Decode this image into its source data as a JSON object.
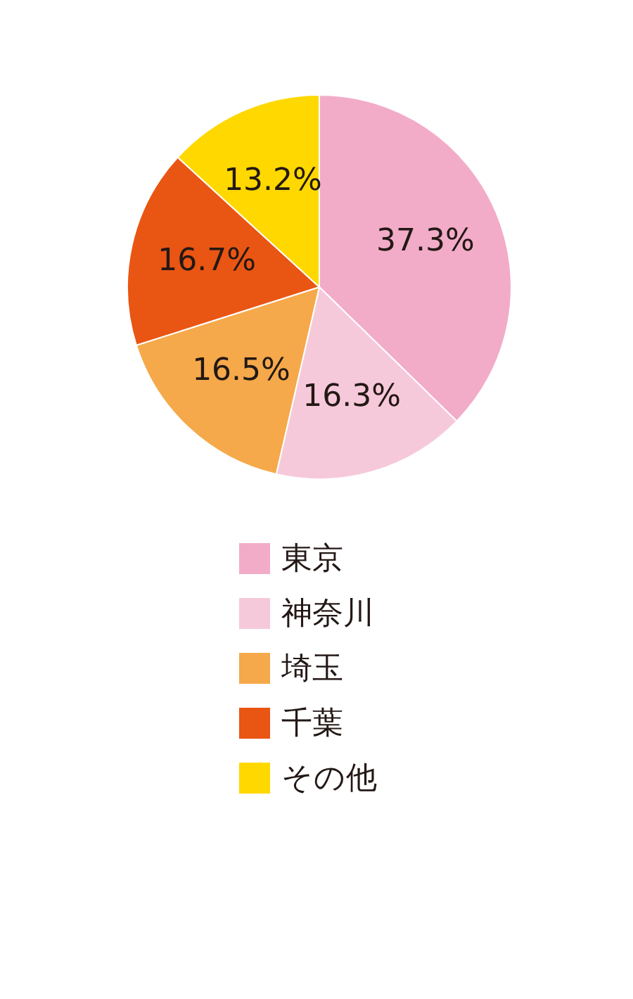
{
  "chart_data": {
    "type": "pie",
    "categories": [
      "東京",
      "神奈川",
      "埼玉",
      "千葉",
      "その他"
    ],
    "values": [
      37.3,
      16.3,
      16.5,
      16.7,
      13.2
    ],
    "colors": [
      "#f2acc8",
      "#f6c9da",
      "#f5a94a",
      "#e95513",
      "#ffd800"
    ],
    "value_labels": [
      "37.3%",
      "16.3%",
      "16.5%",
      "16.7%",
      "13.2%"
    ],
    "legend": "bottom"
  }
}
